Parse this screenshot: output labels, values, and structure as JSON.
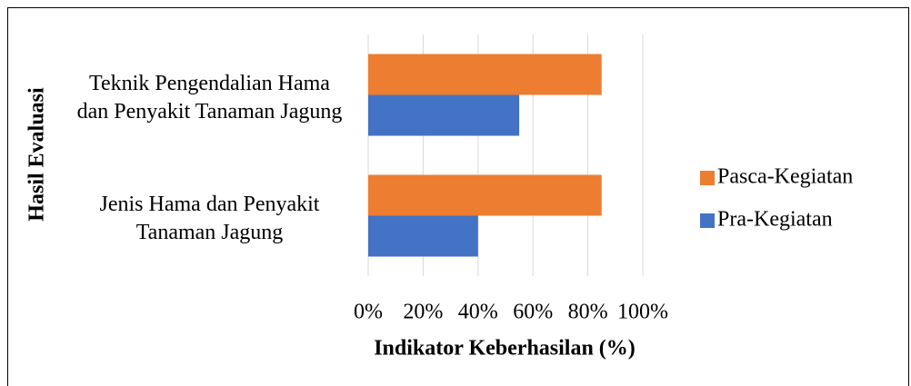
{
  "chart_data": {
    "type": "barh",
    "y_label": "Hasil Evaluasi",
    "x_label": "Indikator Keberhasilan (%)",
    "categories": [
      "Teknik Pengendalian Hama dan Penyakit Tanaman Jagung",
      "Jenis Hama dan Penyakit Tanaman Jagung"
    ],
    "series": [
      {
        "name": "Pasca-Kegiatan",
        "color": "#ed7d31",
        "values": [
          85,
          85
        ]
      },
      {
        "name": "Pra-Kegiatan",
        "color": "#4472c4",
        "values": [
          55,
          40
        ]
      }
    ],
    "xlim": [
      0,
      100
    ],
    "xticks": [
      {
        "value": 0,
        "label": "0%"
      },
      {
        "value": 20,
        "label": "20%"
      },
      {
        "value": 40,
        "label": "40%"
      },
      {
        "value": 60,
        "label": "60%"
      },
      {
        "value": 80,
        "label": "80%"
      },
      {
        "value": 100,
        "label": "100%"
      }
    ],
    "grid": true,
    "legend": "right"
  }
}
